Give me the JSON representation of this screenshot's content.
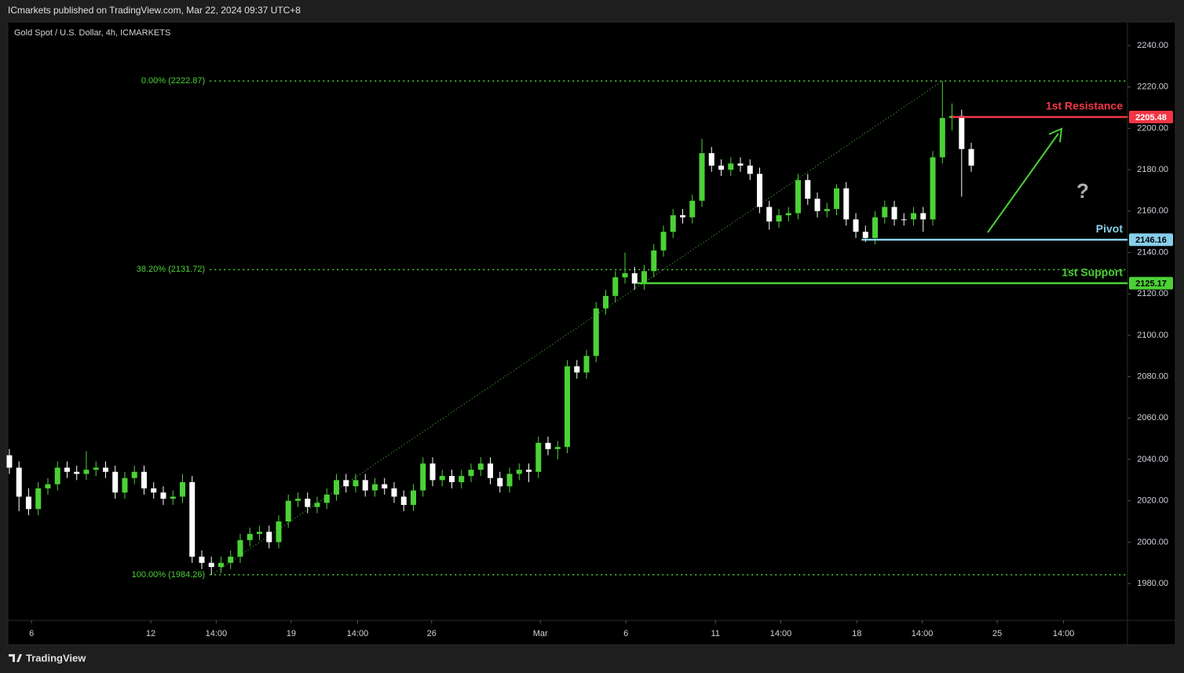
{
  "header": {
    "publisher": "ICmarkets published on TradingView.com, Mar 22, 2024 09:37 UTC+8",
    "footer": "TradingView"
  },
  "chart_data": {
    "type": "candlestick",
    "title": "Gold Spot / U.S. Dollar, 4h, ICMARKETS",
    "up_color": "#4cd137",
    "down_color": "#ffffff",
    "ohlc": [
      [
        2042,
        2045,
        2033,
        2036
      ],
      [
        2036,
        2039,
        2015,
        2022
      ],
      [
        2022,
        2026,
        2013,
        2016
      ],
      [
        2016,
        2029,
        2013,
        2026
      ],
      [
        2026,
        2031,
        2023,
        2028
      ],
      [
        2028,
        2039,
        2025,
        2036
      ],
      [
        2036,
        2039,
        2031,
        2034
      ],
      [
        2034,
        2037,
        2030,
        2033
      ],
      [
        2033,
        2044,
        2030,
        2035
      ],
      [
        2035,
        2039,
        2032,
        2036
      ],
      [
        2036,
        2039,
        2031,
        2034
      ],
      [
        2034,
        2037,
        2021,
        2024
      ],
      [
        2024,
        2034,
        2021,
        2031
      ],
      [
        2031,
        2037,
        2028,
        2034
      ],
      [
        2034,
        2037,
        2023,
        2026
      ],
      [
        2026,
        2029,
        2021,
        2024
      ],
      [
        2024,
        2027,
        2018,
        2021
      ],
      [
        2021,
        2025,
        2018,
        2022
      ],
      [
        2022,
        2033,
        2019,
        2029
      ],
      [
        2029,
        2032,
        1990,
        1993
      ],
      [
        1993,
        1996,
        1987,
        1990
      ],
      [
        1990,
        1993,
        1984.26,
        1988
      ],
      [
        1988,
        1993,
        1985,
        1990
      ],
      [
        1990,
        1996,
        1987,
        1993
      ],
      [
        1993,
        2004,
        1990,
        2001
      ],
      [
        2001,
        2007,
        1998,
        2004
      ],
      [
        2004,
        2008,
        2001,
        2005
      ],
      [
        2005,
        2008,
        1997,
        2000
      ],
      [
        2000,
        2013,
        1997,
        2010
      ],
      [
        2010,
        2023,
        2007,
        2020
      ],
      [
        2020,
        2024,
        2017,
        2021
      ],
      [
        2021,
        2024,
        2014,
        2017
      ],
      [
        2017,
        2022,
        2014,
        2019
      ],
      [
        2019,
        2026,
        2016,
        2023
      ],
      [
        2023,
        2033,
        2020,
        2030
      ],
      [
        2030,
        2033,
        2024,
        2027
      ],
      [
        2027,
        2033,
        2024,
        2030
      ],
      [
        2030,
        2033,
        2022,
        2025
      ],
      [
        2025,
        2031,
        2022,
        2028
      ],
      [
        2028,
        2031,
        2023,
        2026
      ],
      [
        2026,
        2029,
        2019,
        2022
      ],
      [
        2022,
        2025,
        2015,
        2018
      ],
      [
        2018,
        2028,
        2015,
        2025
      ],
      [
        2025,
        2041,
        2022,
        2038
      ],
      [
        2038,
        2041,
        2027,
        2030
      ],
      [
        2030,
        2035,
        2027,
        2032
      ],
      [
        2032,
        2035,
        2026,
        2029
      ],
      [
        2029,
        2035,
        2026,
        2032
      ],
      [
        2032,
        2038,
        2029,
        2035
      ],
      [
        2035,
        2041,
        2032,
        2038
      ],
      [
        2038,
        2041,
        2028,
        2031
      ],
      [
        2031,
        2034,
        2024,
        2027
      ],
      [
        2027,
        2036,
        2024,
        2033
      ],
      [
        2033,
        2038,
        2030,
        2035
      ],
      [
        2035,
        2038,
        2029,
        2034
      ],
      [
        2034,
        2051,
        2031,
        2048
      ],
      [
        2048,
        2051,
        2042,
        2045
      ],
      [
        2045,
        2049,
        2040,
        2046
      ],
      [
        2046,
        2088,
        2043,
        2085
      ],
      [
        2085,
        2088,
        2079,
        2082
      ],
      [
        2082,
        2093,
        2079,
        2090
      ],
      [
        2090,
        2116,
        2087,
        2113
      ],
      [
        2113,
        2122,
        2110,
        2119
      ],
      [
        2119,
        2131,
        2116,
        2128
      ],
      [
        2128,
        2140,
        2125,
        2130
      ],
      [
        2130,
        2133,
        2122,
        2125
      ],
      [
        2125,
        2134,
        2122,
        2131
      ],
      [
        2131,
        2144,
        2128,
        2141
      ],
      [
        2141,
        2153,
        2138,
        2150
      ],
      [
        2150,
        2161,
        2147,
        2158
      ],
      [
        2158,
        2161,
        2154,
        2157
      ],
      [
        2157,
        2168,
        2154,
        2165
      ],
      [
        2165,
        2195,
        2162,
        2188
      ],
      [
        2188,
        2191,
        2179,
        2182
      ],
      [
        2182,
        2185,
        2177,
        2180
      ],
      [
        2180,
        2186,
        2177,
        2183
      ],
      [
        2183,
        2186,
        2179,
        2182
      ],
      [
        2182,
        2185,
        2175,
        2178
      ],
      [
        2178,
        2181,
        2159,
        2162
      ],
      [
        2162,
        2165,
        2151,
        2155
      ],
      [
        2155,
        2161,
        2152,
        2158
      ],
      [
        2158,
        2162,
        2155,
        2159
      ],
      [
        2159,
        2178,
        2156,
        2175
      ],
      [
        2175,
        2178,
        2163,
        2166
      ],
      [
        2166,
        2169,
        2157,
        2160
      ],
      [
        2160,
        2164,
        2157,
        2161
      ],
      [
        2161,
        2173,
        2158,
        2171
      ],
      [
        2171,
        2174,
        2153,
        2156
      ],
      [
        2156,
        2159,
        2147,
        2150
      ],
      [
        2150,
        2153,
        2145,
        2147
      ],
      [
        2147,
        2160,
        2144,
        2157
      ],
      [
        2157,
        2165,
        2154,
        2162
      ],
      [
        2162,
        2165,
        2153,
        2156
      ],
      [
        2156,
        2159,
        2153,
        2156
      ],
      [
        2156,
        2162,
        2153,
        2159
      ],
      [
        2159,
        2162,
        2150,
        2156
      ],
      [
        2156,
        2189,
        2153,
        2186
      ],
      [
        2186,
        2222.87,
        2183,
        2205
      ],
      [
        2205,
        2212,
        2199,
        2206
      ],
      [
        2206,
        2209,
        2167,
        2190
      ],
      [
        2190,
        2193,
        2179,
        2182
      ]
    ],
    "xlim": [
      -0.16,
      116.24
    ],
    "xticks": [
      {
        "value": 2.3,
        "label": "6"
      },
      {
        "value": 14.7,
        "label": "12"
      },
      {
        "value": 21.5,
        "label": "14:00"
      },
      {
        "value": 29.3,
        "label": "19"
      },
      {
        "value": 36.2,
        "label": "14:00"
      },
      {
        "value": 43.9,
        "label": "26"
      },
      {
        "value": 55.2,
        "label": "Mar"
      },
      {
        "value": 64.1,
        "label": "6"
      },
      {
        "value": 73.4,
        "label": "11"
      },
      {
        "value": 80.2,
        "label": "14:00"
      },
      {
        "value": 88.1,
        "label": "18"
      },
      {
        "value": 94.9,
        "label": "14:00"
      },
      {
        "value": 102.7,
        "label": "25"
      },
      {
        "value": 109.6,
        "label": "14:00"
      }
    ],
    "ylim": [
      1962.2,
      2251.4
    ],
    "yticks": [
      {
        "value": 1980,
        "label": "1980.00"
      },
      {
        "value": 2000,
        "label": "2000.00"
      },
      {
        "value": 2020,
        "label": "2020.00"
      },
      {
        "value": 2040,
        "label": "2040.00"
      },
      {
        "value": 2060,
        "label": "2060.00"
      },
      {
        "value": 2080,
        "label": "2080.00"
      },
      {
        "value": 2100,
        "label": "2100.00"
      },
      {
        "value": 2120,
        "label": "2120.00"
      },
      {
        "value": 2140,
        "label": "2140.00"
      },
      {
        "value": 2160,
        "label": "2160.00"
      },
      {
        "value": 2180,
        "label": "2180.00"
      },
      {
        "value": 2200,
        "label": "2200.00"
      },
      {
        "value": 2220,
        "label": "2220.00"
      },
      {
        "value": 2240,
        "label": "2240.00"
      }
    ],
    "fib": {
      "x": [
        21,
        97
      ],
      "color": "#4cd137",
      "levels": [
        {
          "value": 2222.87,
          "label": "0.00% (2222.87)"
        },
        {
          "value": 2131.72,
          "label": "38.20% (2131.72)"
        },
        {
          "value": 1984.26,
          "label": "100.00% (1984.26)"
        }
      ]
    },
    "levels": [
      {
        "name": "1st Resistance",
        "value": 2205.48,
        "start": 98,
        "color": "#f23645",
        "text_color": "#ffffff"
      },
      {
        "name": "Pivot",
        "value": 2146.16,
        "start": 88.6,
        "color": "#87ceeb",
        "text_color": "#000000"
      },
      {
        "name": "1st Support",
        "value": 2125.17,
        "start": 65.3,
        "color": "#4cd137",
        "text_color": "#000000"
      }
    ],
    "annotations": {
      "question": "?"
    }
  }
}
